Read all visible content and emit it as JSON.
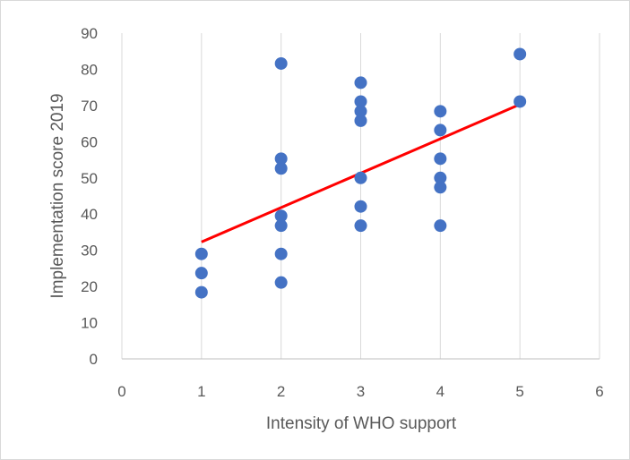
{
  "chart_data": {
    "type": "scatter",
    "title": "",
    "xlabel": "Intensity of WHO support",
    "ylabel": "Implementation score 2019",
    "xlim": [
      0,
      6
    ],
    "ylim": [
      0,
      90
    ],
    "xticks": [
      "0",
      "1",
      "2",
      "3",
      "4",
      "5",
      "6"
    ],
    "yticks": [
      "0",
      "10",
      "20",
      "30",
      "40",
      "50",
      "60",
      "70",
      "80",
      "90"
    ],
    "grid": "vertical",
    "legend": "none",
    "colors": {
      "points": "#4472C4",
      "trendline": "#FF0000",
      "grid": "#d9d9d9"
    },
    "points": [
      {
        "x": 1,
        "y": 29
      },
      {
        "x": 1,
        "y": 23.7
      },
      {
        "x": 1,
        "y": 18.4
      },
      {
        "x": 2,
        "y": 81.6
      },
      {
        "x": 2,
        "y": 55.3
      },
      {
        "x": 2,
        "y": 52.6
      },
      {
        "x": 2,
        "y": 39.5
      },
      {
        "x": 2,
        "y": 36.8
      },
      {
        "x": 2,
        "y": 29
      },
      {
        "x": 2,
        "y": 21.1
      },
      {
        "x": 3,
        "y": 76.3
      },
      {
        "x": 3,
        "y": 71.1
      },
      {
        "x": 3,
        "y": 68.4
      },
      {
        "x": 3,
        "y": 65.8
      },
      {
        "x": 3,
        "y": 50
      },
      {
        "x": 3,
        "y": 42.1
      },
      {
        "x": 3,
        "y": 36.8
      },
      {
        "x": 4,
        "y": 68.4
      },
      {
        "x": 4,
        "y": 63.2
      },
      {
        "x": 4,
        "y": 55.3
      },
      {
        "x": 4,
        "y": 50
      },
      {
        "x": 4,
        "y": 47.4
      },
      {
        "x": 4,
        "y": 36.8
      },
      {
        "x": 5,
        "y": 84.2
      },
      {
        "x": 5,
        "y": 71.1
      }
    ],
    "trendline": {
      "x": [
        1,
        5
      ],
      "y": [
        32.3,
        70.3
      ]
    }
  }
}
